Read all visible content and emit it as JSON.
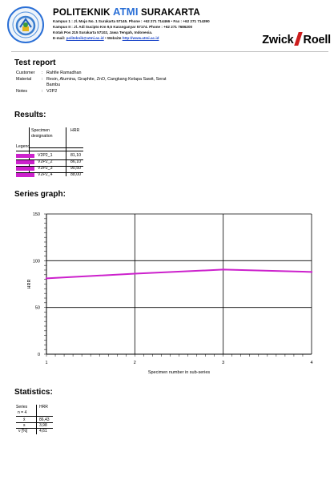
{
  "header": {
    "institution_prefix": "POLITEKNIK ",
    "institution_accent": "ATMI",
    "institution_suffix": " SURAKARTA",
    "address_lines": [
      "Kampus 1 : Jl. Mojo No. 1 Surakarta 57145.  Phone : +62 271 714466  •  Fax : +62 271 714390",
      "Kampus II : Jl. Adi Sucipto Km 9,5 Karanganyar 57174.  Phone : +62 271 7686200",
      "Kotak Pos 215  Surakarta 57102, Jawa Tengah, Indonesia."
    ],
    "email_label": "E-mail: ",
    "email": "politeknik@atmi.ac.id",
    "website_label": "  •  Website ",
    "website": "http://www.atmi.ac.id",
    "brand_left": "Zwick",
    "brand_right": "Roell"
  },
  "report": {
    "title": "Test report",
    "fields": [
      {
        "key": "Customer",
        "value": "Rahfie Ramadhan"
      },
      {
        "key": "Material",
        "value": "Resin, Alumina, Graphite, ZnO, Cangkang Kelapa Sawit, Serat"
      },
      {
        "key": "",
        "value": "Bambu"
      },
      {
        "key": "Notes",
        "value": "V2P2"
      }
    ]
  },
  "results": {
    "title": "Results:",
    "col_legend": "Legend",
    "col_specimen_1": "Specimen",
    "col_specimen_2": "designation",
    "col_hrr": "HRR",
    "rows": [
      {
        "designation": "V2P2_1",
        "hrr": "81,10",
        "color": "#cc21cc"
      },
      {
        "designation": "V2P2_2",
        "hrr": "86,10",
        "color": "#cc21cc"
      },
      {
        "designation": "V2P2_3",
        "hrr": "90,50",
        "color": "#cc21cc"
      },
      {
        "designation": "V2P2_4",
        "hrr": "88,00",
        "color": "#cc21cc"
      }
    ]
  },
  "series_graph": {
    "title": "Series graph:"
  },
  "chart_data": {
    "type": "line",
    "x": [
      1,
      2,
      3,
      4
    ],
    "xlabel": "Specimen number in sub-series",
    "ylabel": "HRR",
    "ylim": [
      0,
      150
    ],
    "xlim": [
      1,
      4
    ],
    "yticks": [
      0,
      50,
      100,
      150
    ],
    "xticks": [
      1,
      2,
      3,
      4
    ],
    "grid": true,
    "series": [
      {
        "values": [
          81.1,
          86.1,
          90.5,
          88.0
        ],
        "color": "#cc21cc"
      }
    ]
  },
  "statistics": {
    "title": "Statistics:",
    "head_series": "Series",
    "head_n": "n = 4",
    "head_hrr": "HRR",
    "rows": [
      {
        "label": "x̄",
        "value": "86,43"
      },
      {
        "label": "s",
        "value": "3,98"
      },
      {
        "label": "ν [%]",
        "value": "4,61"
      }
    ]
  }
}
